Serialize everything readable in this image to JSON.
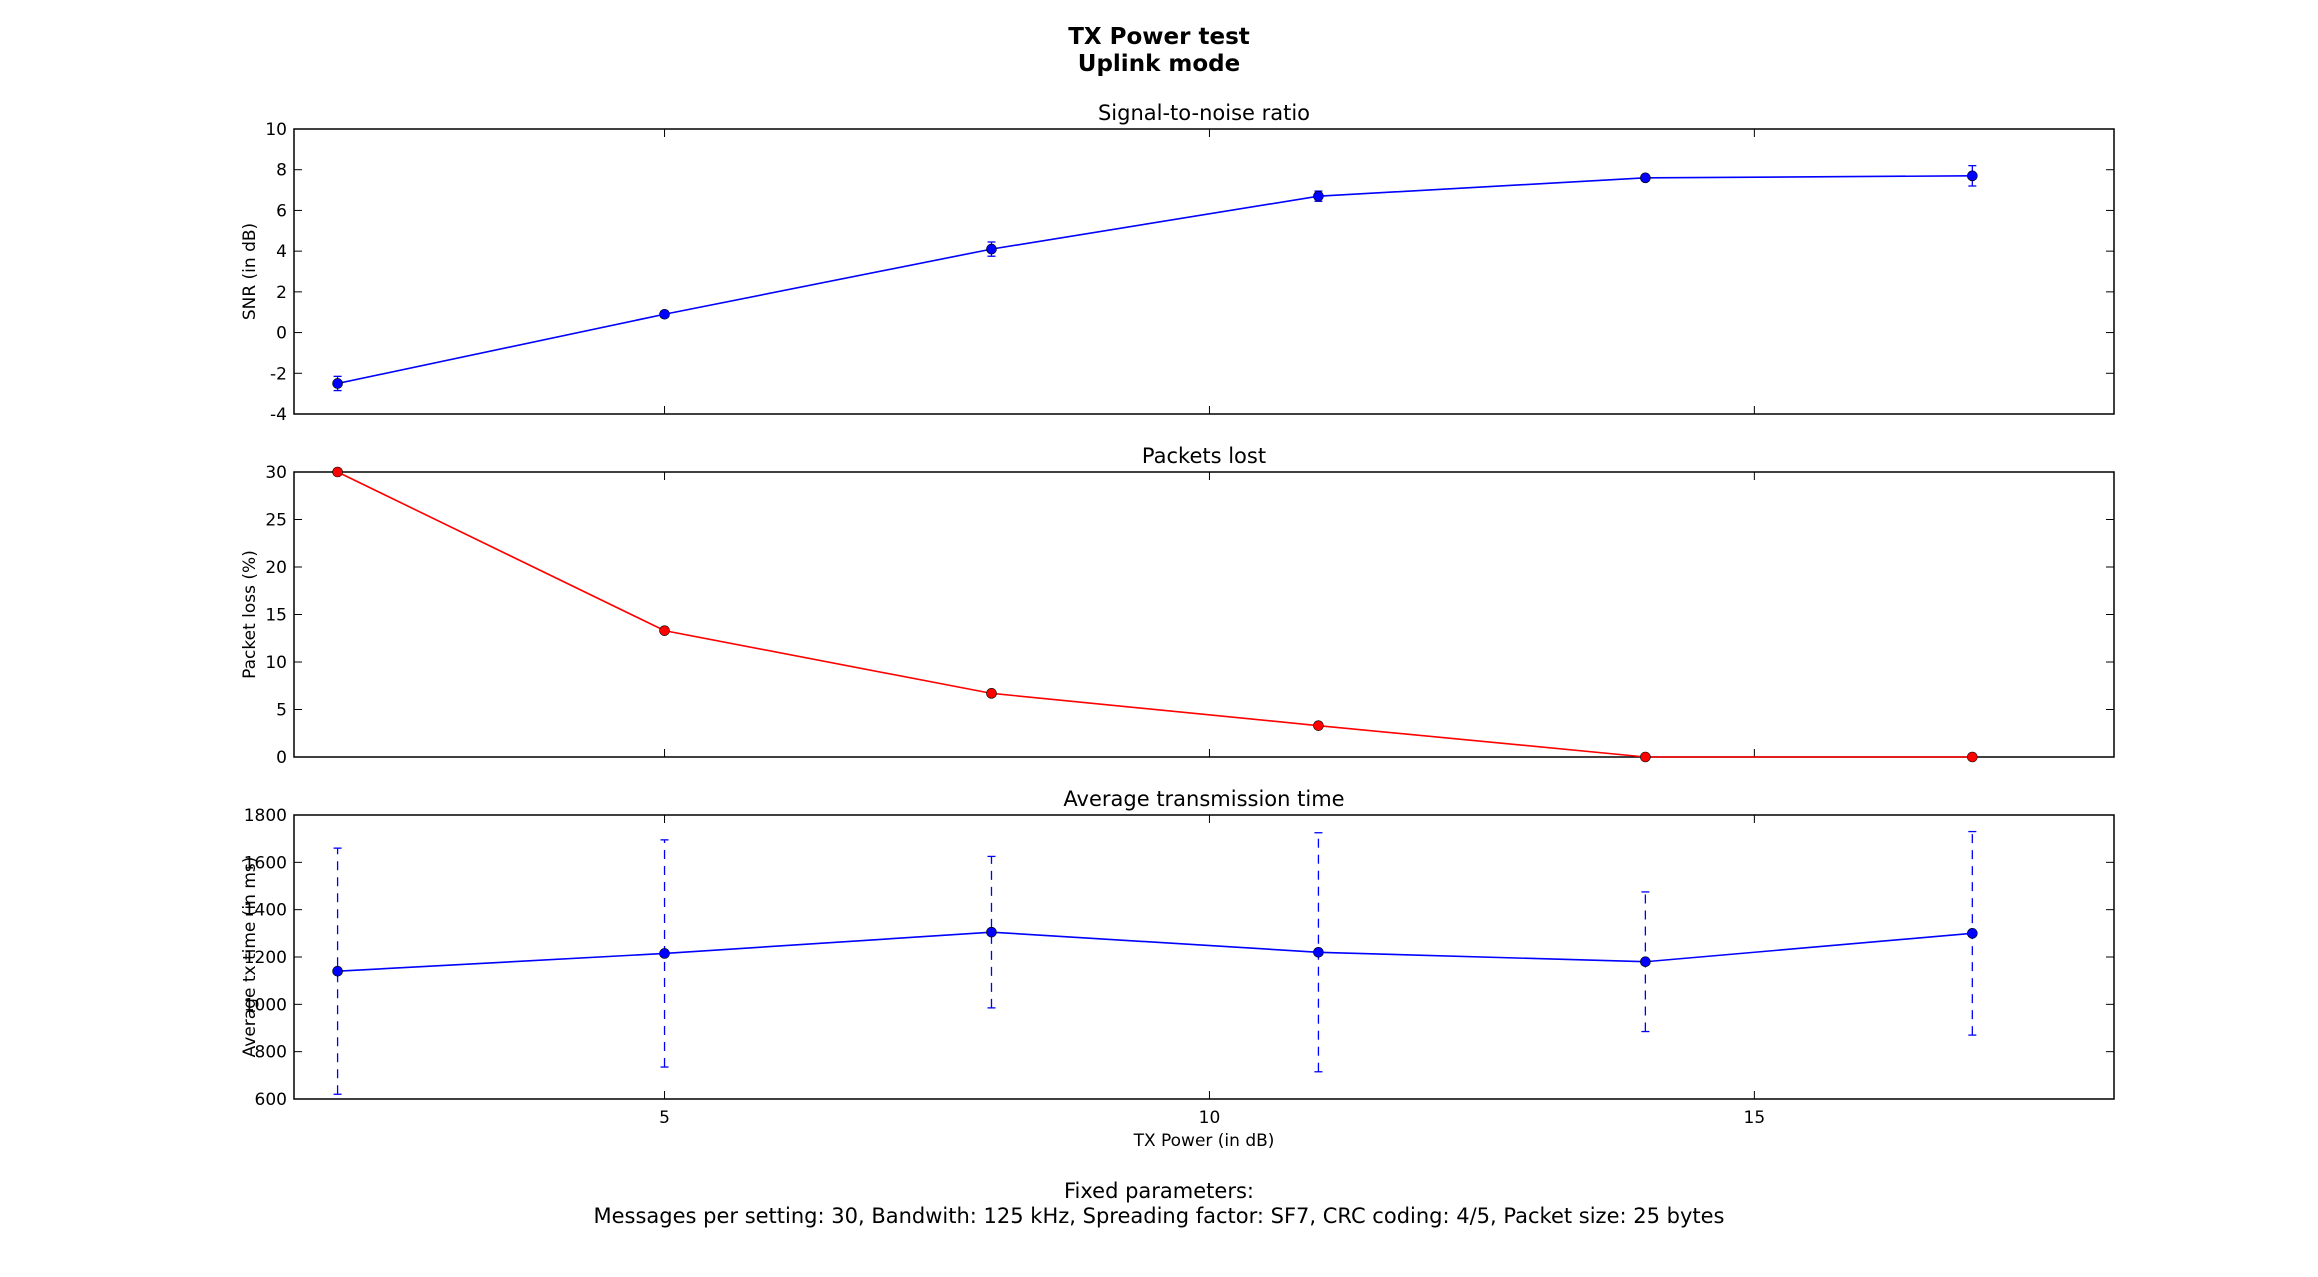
{
  "figure": {
    "title_lines": [
      "TX Power test",
      "Uplink mode"
    ],
    "footnote_lines": [
      "Fixed parameters:",
      "Messages per setting: 30, Bandwith: 125 kHz, Spreading factor: SF7, CRC coding: 4/5, Packet size: 25 bytes"
    ]
  },
  "chart_data": [
    {
      "type": "line",
      "title": "Signal-to-noise ratio",
      "xlabel": "",
      "ylabel": "SNR (in dB)",
      "xlim": [
        1.6,
        18.3
      ],
      "ylim": [
        -4,
        10
      ],
      "yticks": [
        -4,
        -2,
        0,
        2,
        4,
        6,
        8,
        10
      ],
      "xticks": [
        5,
        10,
        15
      ],
      "show_xtick_labels": false,
      "color": "#0000ff",
      "errorbar_style": "solid",
      "x": [
        2,
        5,
        8,
        11,
        14,
        17
      ],
      "y": [
        -2.5,
        0.9,
        4.1,
        6.7,
        7.6,
        7.7
      ],
      "yerr": [
        0.35,
        0.15,
        0.35,
        0.25,
        0.15,
        0.5
      ]
    },
    {
      "type": "line",
      "title": "Packets lost",
      "xlabel": "",
      "ylabel": "Packet loss (%)",
      "xlim": [
        1.6,
        18.3
      ],
      "ylim": [
        0,
        30
      ],
      "yticks": [
        0,
        5,
        10,
        15,
        20,
        25,
        30
      ],
      "xticks": [
        5,
        10,
        15
      ],
      "show_xtick_labels": false,
      "color": "#ff0000",
      "errorbar_style": "none",
      "x": [
        2,
        5,
        8,
        11,
        14,
        17
      ],
      "y": [
        30,
        13.3,
        6.7,
        3.3,
        0,
        0
      ],
      "yerr": []
    },
    {
      "type": "line",
      "title": "Average transmission time",
      "xlabel": "TX Power (in dB)",
      "ylabel": "Average tx time (in ms)",
      "xlim": [
        1.6,
        18.3
      ],
      "ylim": [
        600,
        1800
      ],
      "yticks": [
        600,
        800,
        1000,
        1200,
        1400,
        1600,
        1800
      ],
      "xticks": [
        5,
        10,
        15
      ],
      "show_xtick_labels": true,
      "color": "#0000ff",
      "errorbar_style": "dashed",
      "x": [
        2,
        5,
        8,
        11,
        14,
        17
      ],
      "y": [
        1140,
        1215,
        1305,
        1220,
        1180,
        1300
      ],
      "yerr": [
        520,
        480,
        320,
        505,
        295,
        430
      ]
    }
  ]
}
